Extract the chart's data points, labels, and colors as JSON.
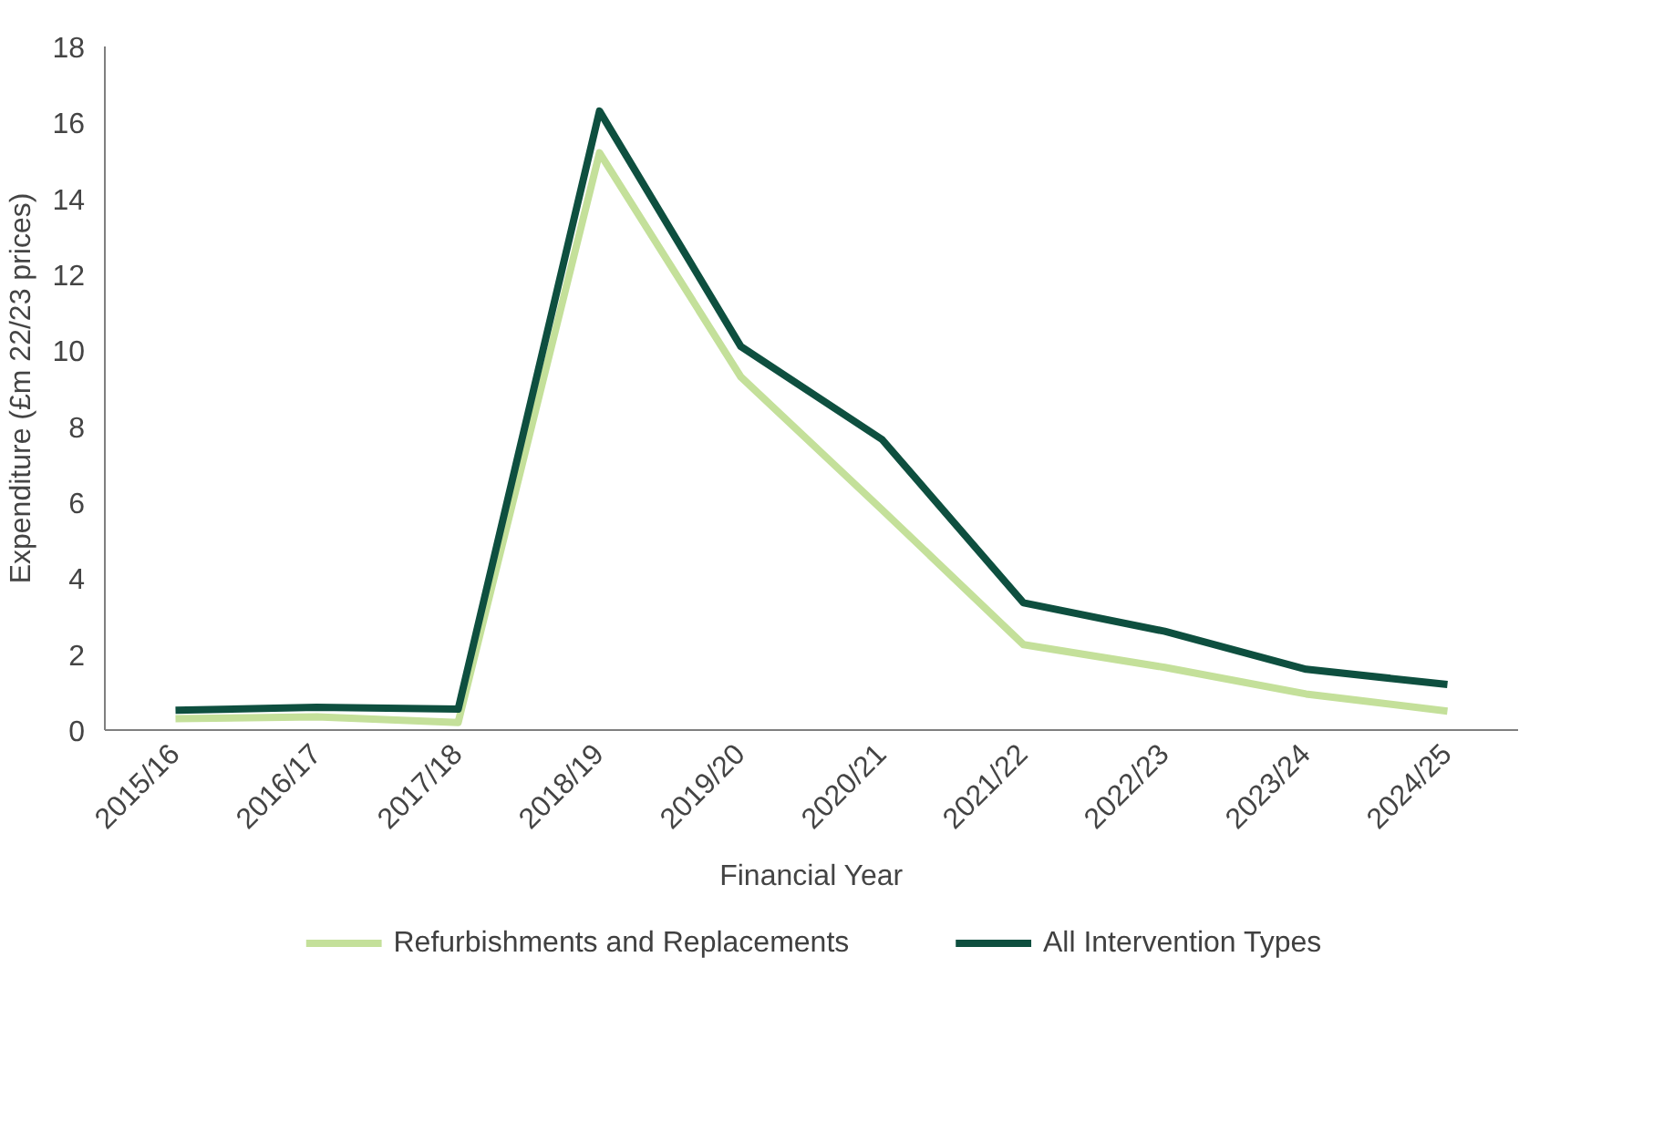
{
  "chart_data": {
    "type": "line",
    "xlabel": "Financial Year",
    "ylabel": "Expenditure (£m 22/23 prices)",
    "categories": [
      "2015/16",
      "2016/17",
      "2017/18",
      "2018/19",
      "2019/20",
      "2020/21",
      "2021/22",
      "2022/23",
      "2023/24",
      "2024/25"
    ],
    "series": [
      {
        "name": "Refurbishments and Replacements",
        "color": "#c4e09a",
        "values": [
          0.3,
          0.35,
          0.2,
          15.2,
          9.3,
          5.8,
          2.25,
          1.65,
          0.95,
          0.5
        ]
      },
      {
        "name": "All Intervention Types",
        "color": "#0e4f3f",
        "values": [
          0.52,
          0.6,
          0.55,
          16.3,
          10.1,
          7.65,
          3.35,
          2.6,
          1.6,
          1.2
        ]
      }
    ],
    "ylim": [
      0,
      18
    ],
    "yticks": [
      0,
      2,
      4,
      6,
      8,
      10,
      12,
      14,
      16,
      18
    ],
    "grid": false,
    "legend": "bottom",
    "marker": "none",
    "line_style": "solid"
  }
}
